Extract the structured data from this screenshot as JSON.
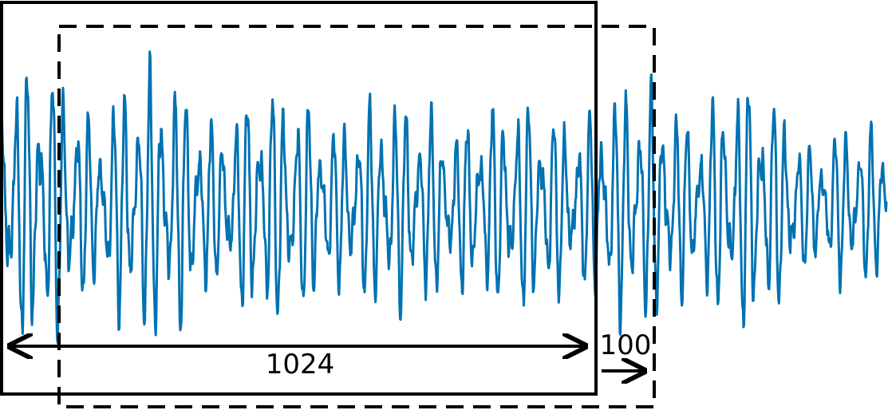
{
  "diagram": {
    "description_type": "sliding-window",
    "window_length_label": "1024",
    "step_label": "100",
    "colors": {
      "signal": "#0072b2",
      "window": "#000000"
    },
    "signal": {
      "samples": 1800,
      "style": "oscillating time-series"
    }
  }
}
